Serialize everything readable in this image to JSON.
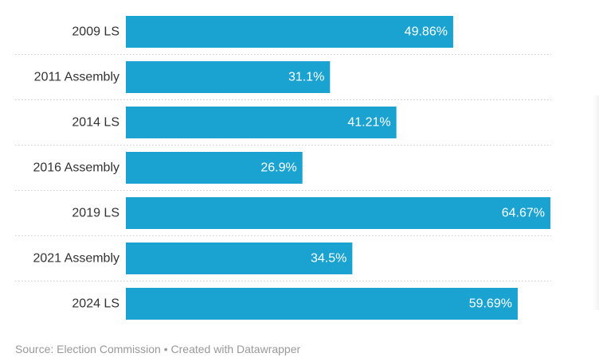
{
  "chart_data": {
    "type": "bar",
    "orientation": "horizontal",
    "categories": [
      "2009 LS",
      "2011 Assembly",
      "2014 LS",
      "2016 Assembly",
      "2019 LS",
      "2021 Assembly",
      "2024 LS"
    ],
    "values": [
      49.86,
      31.1,
      41.21,
      26.9,
      64.67,
      34.5,
      59.69
    ],
    "value_labels": [
      "49.86%",
      "31.1%",
      "41.21%",
      "26.9%",
      "64.67%",
      "34.5%",
      "59.69%"
    ],
    "xlim": [
      0,
      64.67
    ],
    "grid": false,
    "bar_color": "#1aa3d1"
  },
  "footer": {
    "text": "Source: Election Commission • Created with Datawrapper"
  }
}
